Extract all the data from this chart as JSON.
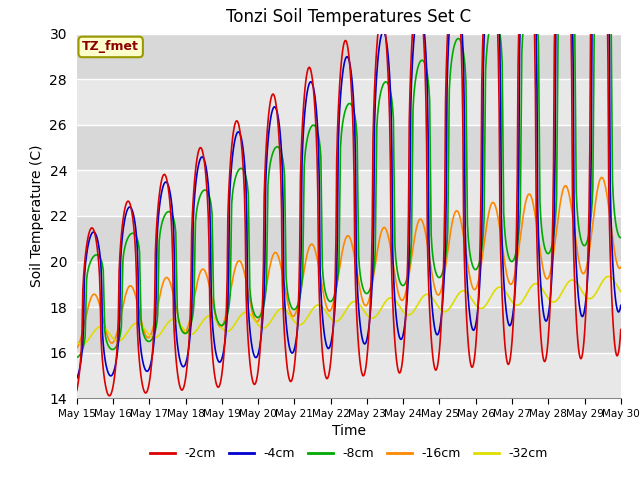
{
  "title": "Tonzi Soil Temperatures Set C",
  "xlabel": "Time",
  "ylabel": "Soil Temperature (C)",
  "ylim": [
    14,
    30
  ],
  "annotation_text": "TZ_fmet",
  "annotation_color": "#8b0000",
  "annotation_bg": "#ffffcc",
  "annotation_border": "#999900",
  "plot_bg_light": "#e8e8e8",
  "plot_bg_dark": "#d8d8d8",
  "grid_color": "#ffffff",
  "series_colors": [
    "#dd0000",
    "#0000cc",
    "#00aa00",
    "#ff8800",
    "#dddd00"
  ],
  "series_labels": [
    "-2cm",
    "-4cm",
    "-8cm",
    "-16cm",
    "-32cm"
  ],
  "legend_linewidth": 2.0,
  "linewidth": 1.2,
  "ytick_values": [
    14,
    16,
    18,
    20,
    22,
    24,
    26,
    28,
    30
  ],
  "xtick_labels": [
    "May 15",
    "May 16",
    "May 17",
    "May 18",
    "May 19",
    "May 20",
    "May 21",
    "May 22",
    "May 23",
    "May 24",
    "May 25",
    "May 26",
    "May 27",
    "May 28",
    "May 29",
    "May 30"
  ]
}
